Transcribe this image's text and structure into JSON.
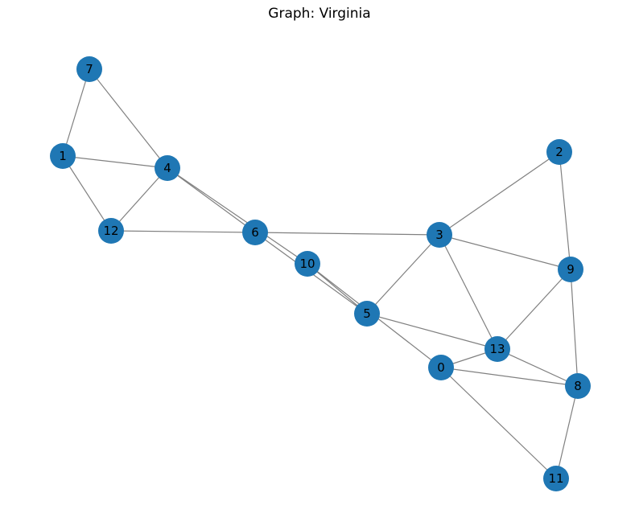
{
  "title": "Graph: Virginia",
  "style": {
    "node_color": "#1f77b4",
    "edge_color": "#808080",
    "label_color": "#000000"
  },
  "graph": {
    "nodes": [
      "0",
      "1",
      "2",
      "3",
      "4",
      "5",
      "6",
      "7",
      "8",
      "9",
      "10",
      "11",
      "12",
      "13"
    ],
    "edges": [
      [
        "7",
        "1"
      ],
      [
        "7",
        "4"
      ],
      [
        "1",
        "4"
      ],
      [
        "1",
        "12"
      ],
      [
        "4",
        "12"
      ],
      [
        "4",
        "6"
      ],
      [
        "4",
        "10"
      ],
      [
        "12",
        "6"
      ],
      [
        "6",
        "3"
      ],
      [
        "6",
        "5"
      ],
      [
        "10",
        "5"
      ],
      [
        "10",
        "0"
      ],
      [
        "3",
        "2"
      ],
      [
        "3",
        "9"
      ],
      [
        "3",
        "5"
      ],
      [
        "3",
        "13"
      ],
      [
        "2",
        "9"
      ],
      [
        "9",
        "13"
      ],
      [
        "9",
        "8"
      ],
      [
        "5",
        "13"
      ],
      [
        "13",
        "0"
      ],
      [
        "13",
        "8"
      ],
      [
        "0",
        "8"
      ],
      [
        "0",
        "11"
      ],
      [
        "8",
        "11"
      ]
    ]
  }
}
